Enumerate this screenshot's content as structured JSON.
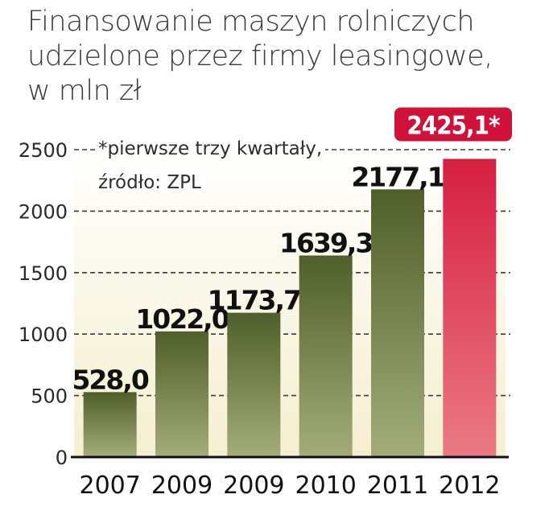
{
  "title": {
    "line1": "Finansowanie maszyn rolniczych",
    "line2": "udzielone przez firmy leasingowe,",
    "line3": "w mln zł"
  },
  "notes": {
    "footnote": "*pierwsze trzy kwartały,",
    "source": "źródło: ZPL"
  },
  "colors": {
    "bar_dark": "#4f5e2a",
    "bar_light": "#a4ad7a",
    "highlight_dark": "#d61f40",
    "highlight_light": "#ea7a86",
    "highlight_badge": "#d0123a",
    "plot_bg": "#f4efcf",
    "grid": "#3a3a3a",
    "text": "#1a1a1a"
  },
  "chart_data": {
    "type": "bar",
    "title": "Finansowanie maszyn rolniczych udzielone przez firmy leasingowe, w mln zł",
    "categories": [
      "2007",
      "2009",
      "2009",
      "2010",
      "2011",
      "2012"
    ],
    "values": [
      528.0,
      1022.0,
      1173.7,
      1639.3,
      2177.1,
      2425.1
    ],
    "value_labels": [
      "528,0",
      "1022,0",
      "1173,7",
      "1639,3",
      "2177,1",
      "2425,1*"
    ],
    "highlighted_index": 5,
    "y_ticks": [
      0,
      500,
      1000,
      1500,
      2000,
      2500
    ],
    "ylim": [
      0,
      2500
    ],
    "grid": "dashed horizontal",
    "legend": "none"
  }
}
